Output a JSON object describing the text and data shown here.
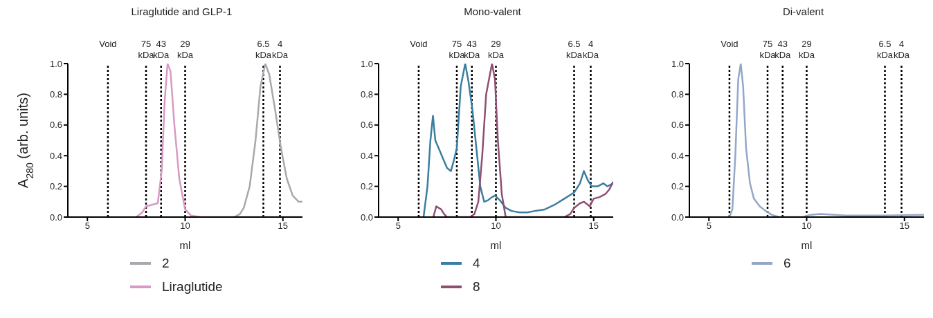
{
  "chart_data": [
    {
      "type": "line",
      "title": "Liraglutide and GLP-1",
      "xlabel": "ml",
      "ylabel": "A$_{280}$ (arb. units)",
      "xlim": [
        4,
        16
      ],
      "xticks": [
        5,
        10,
        15
      ],
      "ylim": [
        0,
        1
      ],
      "yticks": [
        {
          "value": 0,
          "label": "0.0"
        },
        {
          "value": 0.2,
          "label": "0.2"
        },
        {
          "value": 0.4,
          "label": "0.4"
        },
        {
          "value": 0.6,
          "label": "0.6"
        },
        {
          "value": 0.8,
          "label": "0.8"
        },
        {
          "value": 1,
          "label": "1.0"
        }
      ],
      "legend": "bottom",
      "marker": "none",
      "line_style": "solid",
      "ref_lines": [
        {
          "axis": "x",
          "value": 6.05,
          "label": "Void",
          "line_style": "dotted",
          "color": "#000000"
        },
        {
          "axis": "x",
          "value": 8.0,
          "label": "75 kDa",
          "line_style": "dotted",
          "color": "#000000"
        },
        {
          "axis": "x",
          "value": 8.77,
          "label": "43 kDa",
          "line_style": "dotted",
          "color": "#000000"
        },
        {
          "axis": "x",
          "value": 10.0,
          "label": "29 kDa",
          "line_style": "dotted",
          "color": "#000000"
        },
        {
          "axis": "x",
          "value": 14.0,
          "label": "6.5 kDa",
          "line_style": "dotted",
          "color": "#000000"
        },
        {
          "axis": "x",
          "value": 14.85,
          "label": "4 kDa",
          "line_style": "dotted",
          "color": "#000000"
        }
      ],
      "series": [
        {
          "name": "2",
          "color": "#a8a8ad",
          "x": [
            12.5,
            12.8,
            13.0,
            13.3,
            13.6,
            13.85,
            14.1,
            14.3,
            14.6,
            14.9,
            15.2,
            15.5,
            15.8,
            16
          ],
          "values": [
            0,
            0.02,
            0.06,
            0.2,
            0.5,
            0.85,
            1.0,
            0.93,
            0.7,
            0.45,
            0.25,
            0.14,
            0.1,
            0.1
          ]
        },
        {
          "name": "Liraglutide",
          "color": "#d89ac4",
          "x": [
            7.5,
            7.8,
            8.0,
            8.3,
            8.6,
            8.8,
            8.95,
            9.1,
            9.25,
            9.45,
            9.7,
            10.0,
            10.3,
            10.8,
            16
          ],
          "values": [
            0,
            0.03,
            0.07,
            0.08,
            0.09,
            0.3,
            0.75,
            1.0,
            0.95,
            0.6,
            0.25,
            0.05,
            0.01,
            0,
            0
          ]
        }
      ]
    },
    {
      "type": "line",
      "title": "Mono-valent",
      "xlabel": "ml",
      "xlim": [
        4,
        16
      ],
      "xticks": [
        5,
        10,
        15
      ],
      "ylim": [
        0,
        1
      ],
      "yticks": [
        {
          "value": 0,
          "label": "0.0"
        },
        {
          "value": 0.2,
          "label": "0.2"
        },
        {
          "value": 0.4,
          "label": "0.4"
        },
        {
          "value": 0.6,
          "label": "0.6"
        },
        {
          "value": 0.8,
          "label": "0.8"
        },
        {
          "value": 1,
          "label": "1.0"
        }
      ],
      "legend": "bottom",
      "marker": "none",
      "line_style": "solid",
      "ref_lines": [
        {
          "axis": "x",
          "value": 6.05,
          "label": "Void",
          "line_style": "dotted",
          "color": "#000000"
        },
        {
          "axis": "x",
          "value": 8.0,
          "label": "75 kDa",
          "line_style": "dotted",
          "color": "#000000"
        },
        {
          "axis": "x",
          "value": 8.77,
          "label": "43 kDa",
          "line_style": "dotted",
          "color": "#000000"
        },
        {
          "axis": "x",
          "value": 10.0,
          "label": "29 kDa",
          "line_style": "dotted",
          "color": "#000000"
        },
        {
          "axis": "x",
          "value": 14.0,
          "label": "6.5 kDa",
          "line_style": "dotted",
          "color": "#000000"
        },
        {
          "axis": "x",
          "value": 14.85,
          "label": "4 kDa",
          "line_style": "dotted",
          "color": "#000000"
        }
      ],
      "series": [
        {
          "name": "4",
          "color": "#3a7ea0",
          "x": [
            6.3,
            6.5,
            6.65,
            6.78,
            6.9,
            7.1,
            7.3,
            7.5,
            7.7,
            7.85,
            8.0,
            8.2,
            8.43,
            8.6,
            8.8,
            9.0,
            9.2,
            9.4,
            9.6,
            9.8,
            9.95,
            10.2,
            10.5,
            10.8,
            11.2,
            11.6,
            12.0,
            12.5,
            13.0,
            13.5,
            14.0,
            14.3,
            14.5,
            14.7,
            14.9,
            15.2,
            15.5,
            15.7,
            16
          ],
          "values": [
            0,
            0.2,
            0.5,
            0.66,
            0.5,
            0.44,
            0.38,
            0.32,
            0.3,
            0.37,
            0.45,
            0.85,
            1.0,
            0.88,
            0.7,
            0.45,
            0.2,
            0.1,
            0.11,
            0.13,
            0.14,
            0.11,
            0.06,
            0.04,
            0.03,
            0.03,
            0.04,
            0.05,
            0.08,
            0.12,
            0.16,
            0.22,
            0.3,
            0.24,
            0.2,
            0.2,
            0.22,
            0.2,
            0.22
          ]
        },
        {
          "name": "8",
          "color": "#8f4f72",
          "x": [
            6.8,
            6.95,
            7.2,
            7.35,
            7.5,
            8.7,
            8.9,
            9.1,
            9.3,
            9.5,
            9.8,
            9.95,
            10.1,
            10.3,
            10.5,
            13.5,
            13.8,
            14.0,
            14.3,
            14.5,
            14.8,
            15.0,
            15.3,
            15.6,
            15.8,
            16
          ],
          "values": [
            0,
            0.07,
            0.05,
            0.02,
            0,
            0,
            0.02,
            0.1,
            0.4,
            0.8,
            1.0,
            0.9,
            0.5,
            0.15,
            0,
            0,
            0.02,
            0.06,
            0.09,
            0.1,
            0.07,
            0.12,
            0.13,
            0.15,
            0.18,
            0.23
          ]
        }
      ]
    },
    {
      "type": "line",
      "title": "Di-valent",
      "xlabel": "ml",
      "xlim": [
        4,
        16
      ],
      "xticks": [
        5,
        10,
        15
      ],
      "ylim": [
        0,
        1
      ],
      "yticks": [
        {
          "value": 0,
          "label": "0.0"
        },
        {
          "value": 0.2,
          "label": "0.2"
        },
        {
          "value": 0.4,
          "label": "0.4"
        },
        {
          "value": 0.6,
          "label": "0.6"
        },
        {
          "value": 0.8,
          "label": "0.8"
        },
        {
          "value": 1,
          "label": "1.0"
        }
      ],
      "legend": "bottom",
      "marker": "none",
      "line_style": "solid",
      "ref_lines": [
        {
          "axis": "x",
          "value": 6.05,
          "label": "Void",
          "line_style": "dotted",
          "color": "#000000"
        },
        {
          "axis": "x",
          "value": 8.0,
          "label": "75 kDa",
          "line_style": "dotted",
          "color": "#000000"
        },
        {
          "axis": "x",
          "value": 8.77,
          "label": "43 kDa",
          "line_style": "dotted",
          "color": "#000000"
        },
        {
          "axis": "x",
          "value": 10.0,
          "label": "29 kDa",
          "line_style": "dotted",
          "color": "#000000"
        },
        {
          "axis": "x",
          "value": 14.0,
          "label": "6.5 kDa",
          "line_style": "dotted",
          "color": "#000000"
        },
        {
          "axis": "x",
          "value": 14.85,
          "label": "4 kDa",
          "line_style": "dotted",
          "color": "#000000"
        }
      ],
      "series": [
        {
          "name": "6",
          "color": "#94a7c8",
          "x": [
            6.05,
            6.2,
            6.35,
            6.5,
            6.63,
            6.75,
            6.9,
            7.1,
            7.3,
            7.6,
            7.9,
            8.2,
            8.6,
            9.8,
            10.2,
            10.7,
            12,
            14,
            16
          ],
          "values": [
            0,
            0.05,
            0.4,
            0.9,
            1.0,
            0.85,
            0.45,
            0.22,
            0.12,
            0.07,
            0.04,
            0.015,
            0,
            0,
            0.015,
            0.02,
            0.01,
            0.01,
            0.015
          ]
        }
      ]
    }
  ]
}
